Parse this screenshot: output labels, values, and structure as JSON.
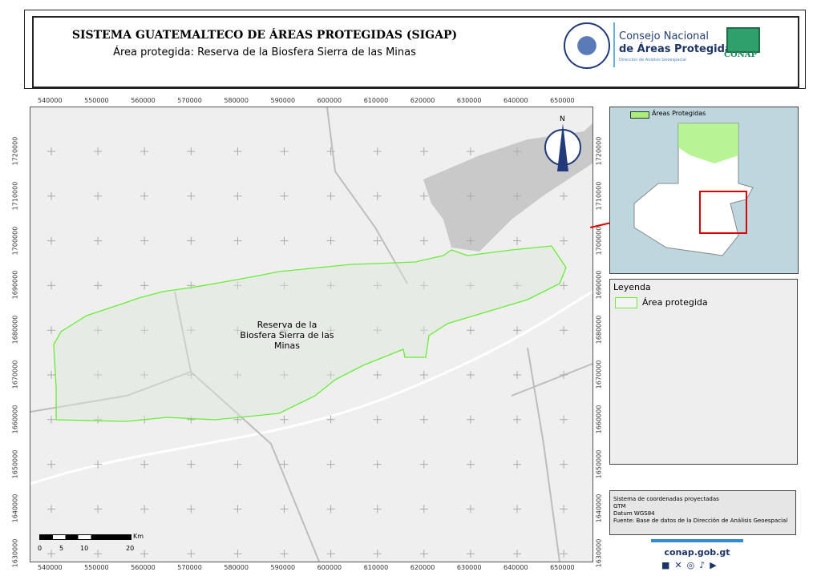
{
  "header": {
    "title": "SISTEMA GUATEMALTECO DE ÁREAS PROTEGIDAS  (SIGAP)",
    "subtitle": "Área protegida: Reserva de la Biosfera Sierra de las Minas"
  },
  "logos": {
    "seal_text": "GOBIERNO DE LA REPÚBLICA · GUATEMALA",
    "conap_line1": "Consejo Nacional",
    "conap_line2": "de Áreas Protegidas",
    "conap_line3": "Dirección de Análisis Geoespacial",
    "conap_badge": "CONAP"
  },
  "map": {
    "x_ticks": [
      "540000",
      "550000",
      "560000",
      "570000",
      "580000",
      "590000",
      "600000",
      "610000",
      "620000",
      "630000",
      "640000",
      "650000"
    ],
    "y_ticks": [
      "1720000",
      "1710000",
      "1700000",
      "1690000",
      "1680000",
      "1670000",
      "1660000",
      "1650000",
      "1640000",
      "1630000"
    ],
    "area_label": "Reserva de la Biosfera Sierra de las Minas",
    "north_label": "N",
    "scale": {
      "labels": [
        "0",
        "5",
        "10",
        "20"
      ],
      "unit": "Km"
    },
    "colors": {
      "area_outline": "#66ee33",
      "background": "#efefef",
      "water": "#c9c9c9"
    }
  },
  "inset": {
    "legend_label": "Áreas Protegidas",
    "colors": {
      "protected": "#a6f07a",
      "water": "#8fd8ee",
      "extent": "#e00000"
    }
  },
  "legend": {
    "title": "Leyenda",
    "item": "Área protegida"
  },
  "info": {
    "lines": [
      "Sistema de coordenadas proyectadas",
      "GTM",
      "Datum WGS84",
      "Fuente: Base de datos de la Dirección de Análisis Geoespacial"
    ]
  },
  "footer": {
    "website": "conap.gob.gt",
    "social": [
      "facebook",
      "x",
      "instagram",
      "tiktok",
      "youtube"
    ]
  }
}
